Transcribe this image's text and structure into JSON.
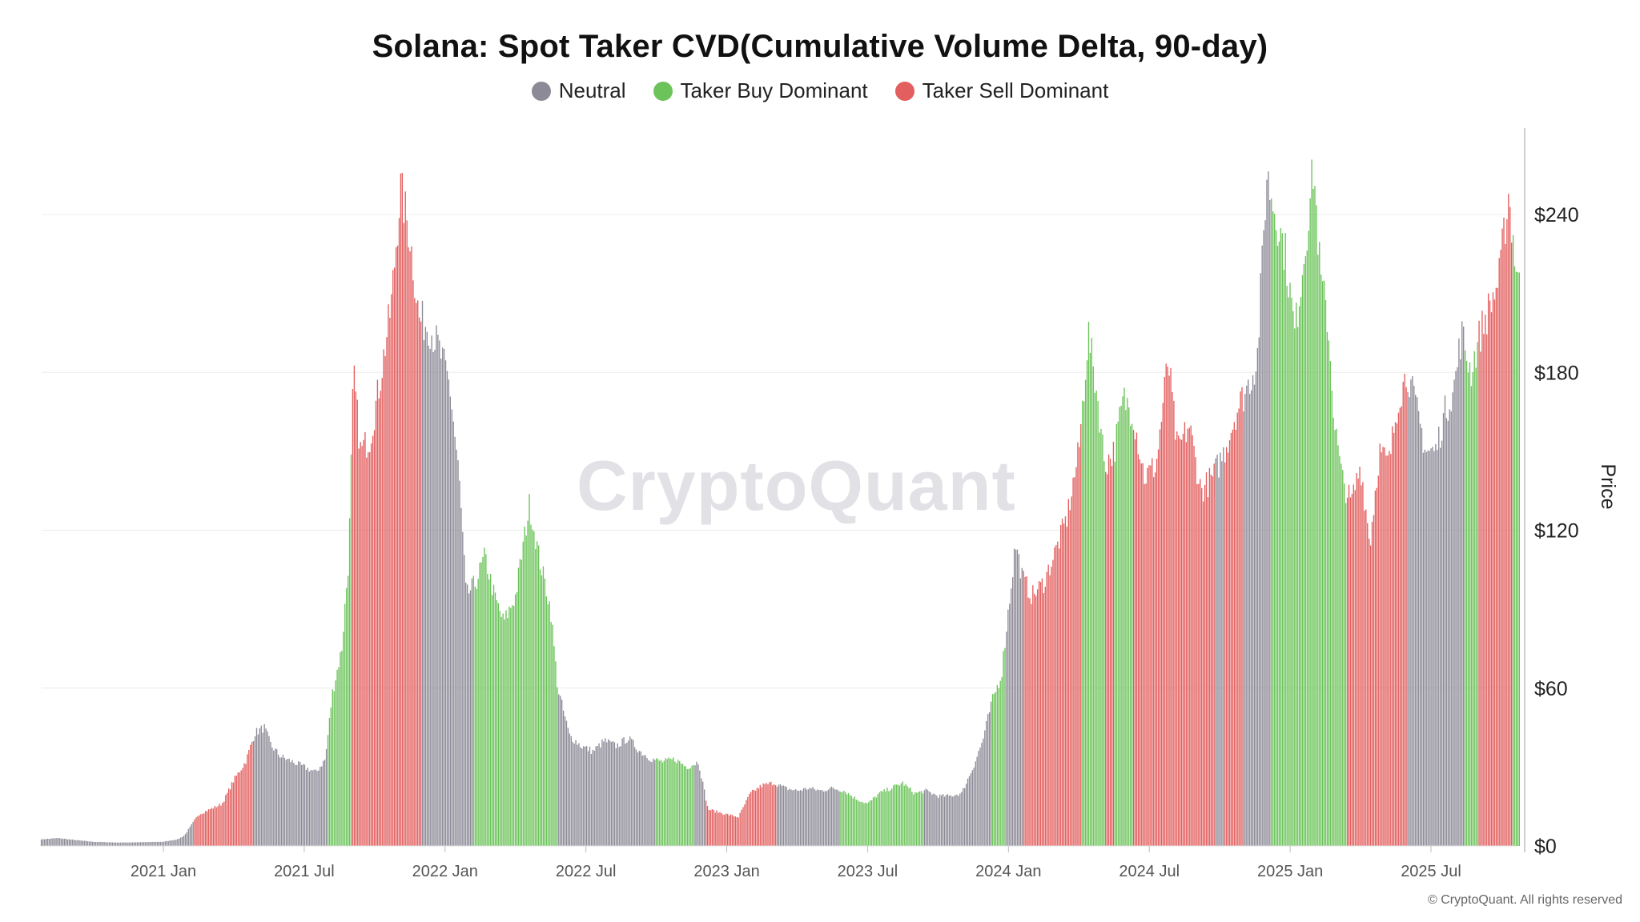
{
  "chart_data": {
    "type": "bar",
    "title": "Solana: Spot Taker CVD(Cumulative Volume Delta, 90-day)",
    "ylabel": "Price",
    "xlabel": "",
    "ylim": [
      0,
      260
    ],
    "y_ticks": [
      "$0",
      "$60",
      "$120",
      "$180",
      "$240"
    ],
    "y_tick_values": [
      0,
      60,
      120,
      180,
      240
    ],
    "x_ticks": [
      "2021 Jan",
      "2021 Jul",
      "2022 Jan",
      "2022 Jul",
      "2023 Jan",
      "2023 Jul",
      "2024 Jan",
      "2024 Jul",
      "2025 Jan",
      "2025 Jul"
    ],
    "x_tick_values": [
      0,
      6,
      12,
      18,
      24,
      30,
      36,
      42,
      48,
      54
    ],
    "xlim": [
      -5.2,
      59.5
    ],
    "grid": true,
    "legend": [
      {
        "name": "Neutral",
        "color": "#8c8a96"
      },
      {
        "name": "Taker Buy Dominant",
        "color": "#6cc35a"
      },
      {
        "name": "Taker Sell Dominant",
        "color": "#e35e5e"
      }
    ],
    "price_points": [
      [
        -5.2,
        2.5
      ],
      [
        -4.5,
        3
      ],
      [
        -3.8,
        2.3
      ],
      [
        -3,
        1.6
      ],
      [
        -2,
        1.3
      ],
      [
        -1,
        1.4
      ],
      [
        0,
        1.6
      ],
      [
        0.6,
        2.5
      ],
      [
        0.9,
        4
      ],
      [
        1.2,
        8
      ],
      [
        1.5,
        12
      ],
      [
        2,
        14
      ],
      [
        2.5,
        16
      ],
      [
        3,
        25
      ],
      [
        3.5,
        32
      ],
      [
        3.9,
        43
      ],
      [
        4.3,
        45
      ],
      [
        4.6,
        38
      ],
      [
        5,
        34
      ],
      [
        5.5,
        32
      ],
      [
        6,
        30
      ],
      [
        6.5,
        28
      ],
      [
        6.9,
        33
      ],
      [
        7.2,
        58
      ],
      [
        7.6,
        75
      ],
      [
        7.9,
        110
      ],
      [
        8.1,
        180
      ],
      [
        8.4,
        150
      ],
      [
        8.8,
        155
      ],
      [
        9.2,
        175
      ],
      [
        9.7,
        205
      ],
      [
        10.1,
        250
      ],
      [
        10.5,
        232
      ],
      [
        10.9,
        200
      ],
      [
        11.3,
        198
      ],
      [
        11.7,
        190
      ],
      [
        12.2,
        175
      ],
      [
        12.6,
        140
      ],
      [
        12.9,
        95
      ],
      [
        13.3,
        100
      ],
      [
        13.7,
        110
      ],
      [
        14.1,
        95
      ],
      [
        14.5,
        85
      ],
      [
        15,
        95
      ],
      [
        15.6,
        130
      ],
      [
        16,
        110
      ],
      [
        16.5,
        90
      ],
      [
        16.8,
        60
      ],
      [
        17.3,
        42
      ],
      [
        17.8,
        38
      ],
      [
        18.3,
        36
      ],
      [
        18.8,
        40
      ],
      [
        19.3,
        38
      ],
      [
        19.8,
        41
      ],
      [
        20.3,
        36
      ],
      [
        20.8,
        33
      ],
      [
        21.3,
        32
      ],
      [
        21.8,
        33
      ],
      [
        22.3,
        30
      ],
      [
        22.8,
        32
      ],
      [
        23.2,
        14
      ],
      [
        23.6,
        13
      ],
      [
        24,
        12
      ],
      [
        24.5,
        11
      ],
      [
        25,
        20
      ],
      [
        25.5,
        23
      ],
      [
        26,
        24
      ],
      [
        26.5,
        22
      ],
      [
        27,
        21
      ],
      [
        27.5,
        22
      ],
      [
        28,
        21
      ],
      [
        28.5,
        22
      ],
      [
        29,
        21
      ],
      [
        29.5,
        18
      ],
      [
        30,
        16
      ],
      [
        30.5,
        20
      ],
      [
        31,
        22
      ],
      [
        31.5,
        24
      ],
      [
        32,
        20
      ],
      [
        32.5,
        21
      ],
      [
        33,
        19
      ],
      [
        33.5,
        19
      ],
      [
        34,
        20
      ],
      [
        34.5,
        30
      ],
      [
        34.9,
        40
      ],
      [
        35.3,
        55
      ],
      [
        35.7,
        65
      ],
      [
        36,
        90
      ],
      [
        36.3,
        115
      ],
      [
        36.6,
        102
      ],
      [
        37,
        95
      ],
      [
        37.5,
        100
      ],
      [
        38,
        112
      ],
      [
        38.5,
        125
      ],
      [
        39,
        150
      ],
      [
        39.4,
        195
      ],
      [
        39.8,
        170
      ],
      [
        40.1,
        145
      ],
      [
        40.5,
        150
      ],
      [
        40.9,
        170
      ],
      [
        41.3,
        165
      ],
      [
        41.8,
        140
      ],
      [
        42.3,
        145
      ],
      [
        42.8,
        185
      ],
      [
        43.2,
        150
      ],
      [
        43.7,
        160
      ],
      [
        44.2,
        135
      ],
      [
        44.7,
        140
      ],
      [
        45.2,
        150
      ],
      [
        45.7,
        165
      ],
      [
        46.2,
        175
      ],
      [
        46.6,
        185
      ],
      [
        47,
        255
      ],
      [
        47.4,
        240
      ],
      [
        47.8,
        225
      ],
      [
        48.2,
        195
      ],
      [
        48.6,
        225
      ],
      [
        49,
        258
      ],
      [
        49.3,
        215
      ],
      [
        49.6,
        200
      ],
      [
        49.9,
        160
      ],
      [
        50.2,
        140
      ],
      [
        50.6,
        130
      ],
      [
        51,
        145
      ],
      [
        51.4,
        115
      ],
      [
        51.8,
        150
      ],
      [
        52.2,
        145
      ],
      [
        52.6,
        170
      ],
      [
        53,
        180
      ],
      [
        53.4,
        165
      ],
      [
        53.8,
        150
      ],
      [
        54.2,
        150
      ],
      [
        54.6,
        165
      ],
      [
        55,
        175
      ],
      [
        55.3,
        195
      ],
      [
        55.7,
        180
      ],
      [
        56.1,
        195
      ],
      [
        56.5,
        205
      ],
      [
        56.9,
        215
      ],
      [
        57.3,
        248
      ],
      [
        57.6,
        222
      ],
      [
        57.8,
        210
      ]
    ],
    "regimes": [
      {
        "x0": -5.2,
        "x1": 1.3,
        "state": "Neutral"
      },
      {
        "x0": 1.3,
        "x1": 3.8,
        "state": "Taker Sell Dominant"
      },
      {
        "x0": 3.8,
        "x1": 7.0,
        "state": "Neutral"
      },
      {
        "x0": 7.0,
        "x1": 8.0,
        "state": "Taker Buy Dominant"
      },
      {
        "x0": 8.0,
        "x1": 11.0,
        "state": "Taker Sell Dominant"
      },
      {
        "x0": 11.0,
        "x1": 13.2,
        "state": "Neutral"
      },
      {
        "x0": 13.2,
        "x1": 16.8,
        "state": "Taker Buy Dominant"
      },
      {
        "x0": 16.8,
        "x1": 21.0,
        "state": "Neutral"
      },
      {
        "x0": 21.0,
        "x1": 22.6,
        "state": "Taker Buy Dominant"
      },
      {
        "x0": 22.6,
        "x1": 23.1,
        "state": "Neutral"
      },
      {
        "x0": 23.1,
        "x1": 26.1,
        "state": "Taker Sell Dominant"
      },
      {
        "x0": 26.1,
        "x1": 28.8,
        "state": "Neutral"
      },
      {
        "x0": 28.8,
        "x1": 32.4,
        "state": "Taker Buy Dominant"
      },
      {
        "x0": 32.4,
        "x1": 35.3,
        "state": "Neutral"
      },
      {
        "x0": 35.3,
        "x1": 35.9,
        "state": "Taker Buy Dominant"
      },
      {
        "x0": 35.9,
        "x1": 36.6,
        "state": "Neutral"
      },
      {
        "x0": 36.6,
        "x1": 39.1,
        "state": "Taker Sell Dominant"
      },
      {
        "x0": 39.1,
        "x1": 40.1,
        "state": "Taker Buy Dominant"
      },
      {
        "x0": 40.1,
        "x1": 40.5,
        "state": "Taker Sell Dominant"
      },
      {
        "x0": 40.5,
        "x1": 41.3,
        "state": "Taker Buy Dominant"
      },
      {
        "x0": 41.3,
        "x1": 44.8,
        "state": "Taker Sell Dominant"
      },
      {
        "x0": 44.8,
        "x1": 45.2,
        "state": "Neutral"
      },
      {
        "x0": 45.2,
        "x1": 46.0,
        "state": "Taker Sell Dominant"
      },
      {
        "x0": 46.0,
        "x1": 47.2,
        "state": "Neutral"
      },
      {
        "x0": 47.2,
        "x1": 50.4,
        "state": "Taker Buy Dominant"
      },
      {
        "x0": 50.4,
        "x1": 53.0,
        "state": "Taker Sell Dominant"
      },
      {
        "x0": 53.0,
        "x1": 55.4,
        "state": "Neutral"
      },
      {
        "x0": 55.4,
        "x1": 56.0,
        "state": "Taker Buy Dominant"
      },
      {
        "x0": 56.0,
        "x1": 57.5,
        "state": "Taker Sell Dominant"
      },
      {
        "x0": 57.5,
        "x1": 57.8,
        "state": "Taker Buy Dominant"
      }
    ]
  },
  "watermark": "CryptoQuant",
  "footer": "© CryptoQuant. All rights reserved"
}
